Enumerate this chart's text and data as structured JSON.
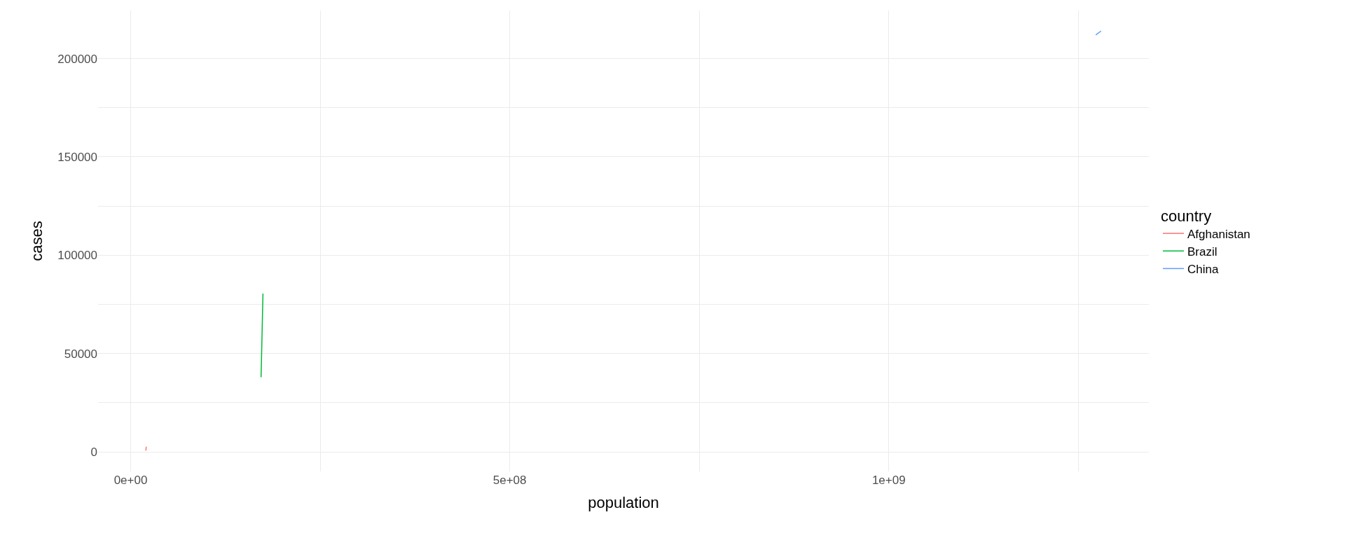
{
  "chart_data": {
    "type": "line",
    "xlabel": "population",
    "ylabel": "cases",
    "legend_title": "country",
    "series": [
      {
        "name": "Afghanistan",
        "color": "#f8766d",
        "x": [
          20000000,
          20600000
        ],
        "values": [
          700,
          2700
        ]
      },
      {
        "name": "Brazil",
        "color": "#00ba38",
        "x": [
          172000000,
          174500000
        ],
        "values": [
          38000,
          80500
        ]
      },
      {
        "name": "China",
        "color": "#619cff",
        "x": [
          1273000000,
          1280000000
        ],
        "values": [
          212000,
          214000
        ]
      }
    ],
    "xlim": [
      -43000000,
      1343000000
    ],
    "ylim": [
      -9906,
      224417
    ],
    "xticks": [
      {
        "value": 0,
        "label": "0e+00"
      },
      {
        "value": 250000000,
        "label": null
      },
      {
        "value": 500000000,
        "label": "5e+08"
      },
      {
        "value": 750000000,
        "label": null
      },
      {
        "value": 1000000000,
        "label": "1e+09"
      },
      {
        "value": 1250000000,
        "label": null
      }
    ],
    "yticks": [
      0,
      {
        "value": 25000,
        "label": null
      },
      50000,
      {
        "value": 75000,
        "label": null
      },
      100000,
      {
        "value": 125000,
        "label": null
      },
      150000,
      {
        "value": 175000,
        "label": null
      },
      200000
    ],
    "grid": true,
    "legend": "right",
    "marker": "none",
    "line_style": "solid"
  }
}
